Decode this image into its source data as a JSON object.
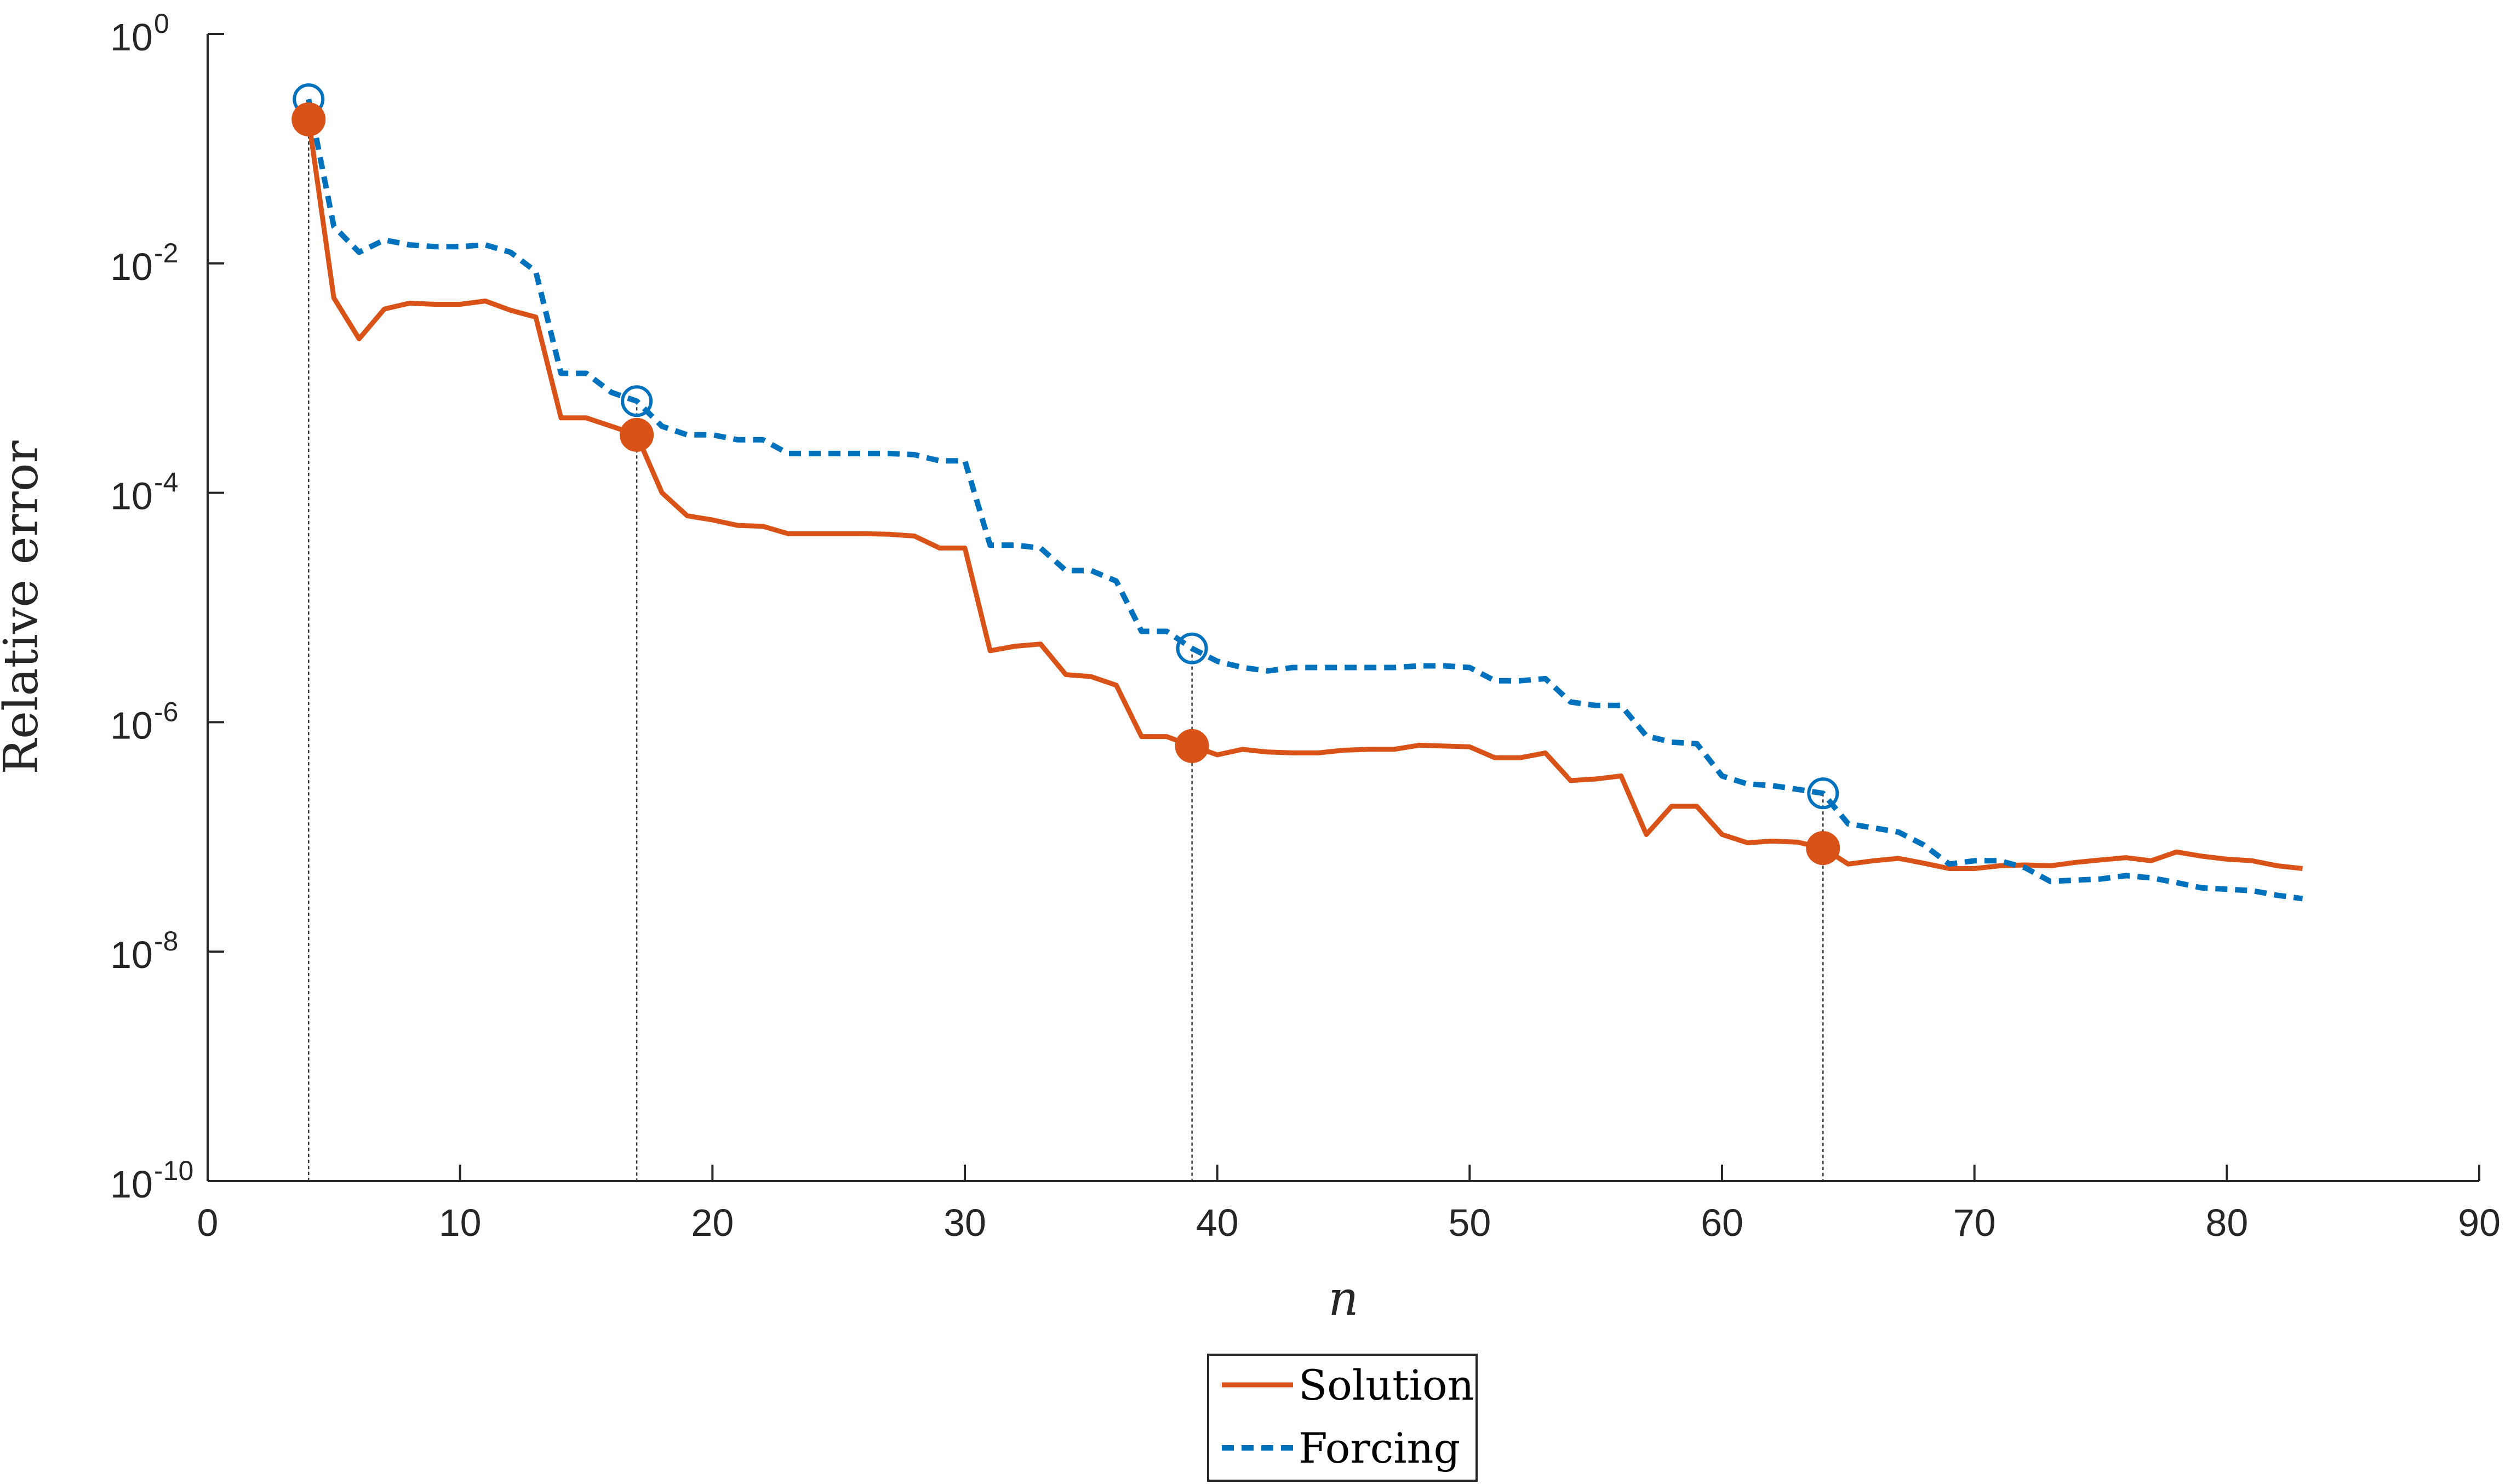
{
  "chart_data": {
    "type": "line",
    "xlabel": "n",
    "ylabel": "Relative error",
    "xlim": [
      0,
      90
    ],
    "ylim": [
      1e-10,
      1
    ],
    "yscale": "log",
    "xticks": [
      0,
      10,
      20,
      30,
      40,
      50,
      60,
      70,
      80,
      90
    ],
    "yticks": [
      {
        "base": "10",
        "exp": "-10",
        "value": 1e-10
      },
      {
        "base": "10",
        "exp": "-8",
        "value": 1e-08
      },
      {
        "base": "10",
        "exp": "-6",
        "value": 1e-06
      },
      {
        "base": "10",
        "exp": "-4",
        "value": 0.0001
      },
      {
        "base": "10",
        "exp": "-2",
        "value": 0.01
      },
      {
        "base": "10",
        "exp": "0",
        "value": 1
      }
    ],
    "grid": false,
    "legend_position": "bottom-center outside",
    "marked_n": [
      4,
      17,
      39,
      64
    ],
    "series": [
      {
        "name": "Solution",
        "color": "#D95319",
        "style": "solid",
        "marker": "filled-circle",
        "x": [
          4,
          5,
          6,
          7,
          8,
          9,
          10,
          11,
          12,
          13,
          14,
          15,
          16,
          17,
          18,
          19,
          20,
          21,
          22,
          23,
          24,
          25,
          26,
          27,
          28,
          29,
          30,
          31,
          32,
          33,
          34,
          35,
          36,
          37,
          38,
          39,
          40,
          41,
          42,
          43,
          44,
          45,
          46,
          47,
          48,
          49,
          50,
          51,
          52,
          53,
          54,
          55,
          56,
          57,
          58,
          59,
          60,
          61,
          62,
          63,
          64,
          65,
          66,
          67,
          68,
          69,
          70,
          71,
          72,
          73,
          74,
          75,
          76,
          77,
          78,
          79,
          80,
          81,
          82,
          83
        ],
        "y": [
          0.18,
          0.005,
          0.0022,
          0.004,
          0.0045,
          0.0044,
          0.0044,
          0.0047,
          0.0039,
          0.0034,
          0.00045,
          0.00045,
          0.00038,
          0.00032,
          0.0001,
          6.3e-05,
          5.8e-05,
          5.2e-05,
          5.1e-05,
          4.4e-05,
          4.4e-05,
          4.4e-05,
          4.4e-05,
          4.35e-05,
          4.2e-05,
          3.3e-05,
          3.3e-05,
          4.2e-06,
          4.6e-06,
          4.8e-06,
          2.6e-06,
          2.5e-06,
          2.1e-06,
          7.5e-07,
          7.5e-07,
          6.2e-07,
          5.2e-07,
          5.8e-07,
          5.5e-07,
          5.4e-07,
          5.4e-07,
          5.7e-07,
          5.8e-07,
          5.8e-07,
          6.3e-07,
          6.2e-07,
          6.1e-07,
          4.9e-07,
          4.9e-07,
          5.4e-07,
          3.1e-07,
          3.2e-07,
          3.4e-07,
          1.05e-07,
          1.85e-07,
          1.85e-07,
          1.05e-07,
          8.9e-08,
          9.2e-08,
          9e-08,
          8e-08,
          5.8e-08,
          6.2e-08,
          6.5e-08,
          5.9e-08,
          5.3e-08,
          5.3e-08,
          5.6e-08,
          5.7e-08,
          5.6e-08,
          6e-08,
          6.3e-08,
          6.6e-08,
          6.2e-08,
          7.4e-08,
          6.8e-08,
          6.4e-08,
          6.2e-08,
          5.6e-08,
          5.3e-08
        ],
        "marker_y": [
          0.18,
          0.00032,
          6.2e-07,
          8e-08
        ]
      },
      {
        "name": "Forcing",
        "color": "#0072BD",
        "style": "dashed",
        "marker": "open-circle",
        "x": [
          4,
          5,
          6,
          7,
          8,
          9,
          10,
          11,
          12,
          13,
          14,
          15,
          16,
          17,
          18,
          19,
          20,
          21,
          22,
          23,
          24,
          25,
          26,
          27,
          28,
          29,
          30,
          31,
          32,
          33,
          34,
          35,
          36,
          37,
          38,
          39,
          40,
          41,
          42,
          43,
          44,
          45,
          46,
          47,
          48,
          49,
          50,
          51,
          52,
          53,
          54,
          55,
          56,
          57,
          58,
          59,
          60,
          61,
          62,
          63,
          64,
          65,
          66,
          67,
          68,
          69,
          70,
          71,
          72,
          73,
          74,
          75,
          76,
          77,
          78,
          79,
          80,
          81,
          82,
          83
        ],
        "y": [
          0.27,
          0.021,
          0.0125,
          0.016,
          0.0145,
          0.014,
          0.014,
          0.0145,
          0.0125,
          0.0085,
          0.0011,
          0.0011,
          0.00075,
          0.00063,
          0.00038,
          0.00032,
          0.00032,
          0.00029,
          0.00029,
          0.00022,
          0.00022,
          0.00022,
          0.00022,
          0.00022,
          0.000215,
          0.00019,
          0.00019,
          3.5e-05,
          3.5e-05,
          3.3e-05,
          2.1e-05,
          2.1e-05,
          1.7e-05,
          6.2e-06,
          6.2e-06,
          4.4e-06,
          3.4e-06,
          3e-06,
          2.8e-06,
          3e-06,
          3e-06,
          3e-06,
          3e-06,
          3e-06,
          3.1e-06,
          3.1e-06,
          3e-06,
          2.3e-06,
          2.3e-06,
          2.4e-06,
          1.5e-06,
          1.4e-06,
          1.4e-06,
          7.6e-07,
          6.7e-07,
          6.5e-07,
          3.4e-07,
          2.9e-07,
          2.8e-07,
          2.6e-07,
          2.4e-07,
          1.3e-07,
          1.2e-07,
          1.1e-07,
          8.5e-08,
          5.8e-08,
          6.2e-08,
          6.2e-08,
          5.4e-08,
          4.1e-08,
          4.2e-08,
          4.3e-08,
          4.6e-08,
          4.4e-08,
          4e-08,
          3.6e-08,
          3.5e-08,
          3.4e-08,
          3.1e-08,
          2.9e-08
        ],
        "marker_y": [
          0.27,
          0.00063,
          4.4e-06,
          2.4e-07
        ]
      }
    ]
  }
}
